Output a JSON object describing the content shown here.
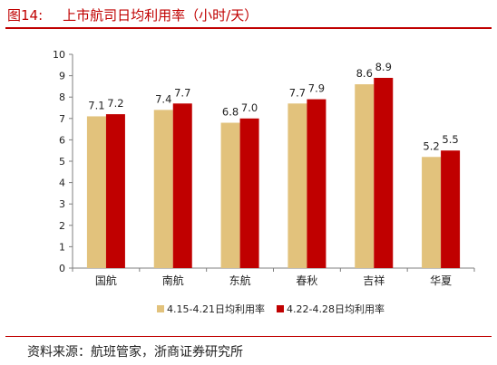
{
  "header": {
    "figure_label": "图14:",
    "title": "上市航司日均利用率（小时/天）"
  },
  "footer": {
    "source": "资料来源：航班管家，浙商证券研究所"
  },
  "colors": {
    "title_red": "#c00000",
    "series_a": "#e2c27c",
    "series_b": "#c00000",
    "axis": "#7f7f7f"
  },
  "chart_data": {
    "type": "bar",
    "title": "",
    "xlabel": "",
    "ylabel": "",
    "ylim": [
      0,
      10
    ],
    "yticks": [
      0,
      1,
      2,
      3,
      4,
      5,
      6,
      7,
      8,
      9,
      10
    ],
    "grid": false,
    "legend_position": "bottom",
    "categories": [
      "国航",
      "南航",
      "东航",
      "春秋",
      "吉祥",
      "华夏"
    ],
    "series": [
      {
        "name": "4.15-4.21日均利用率",
        "values": [
          7.1,
          7.4,
          6.8,
          7.7,
          8.6,
          5.2
        ],
        "labels": [
          "7.1",
          "7.4",
          "6.8",
          "7.7",
          "8.6",
          "5.2"
        ]
      },
      {
        "name": "4.22-4.28日均利用率",
        "values": [
          7.2,
          7.7,
          7.0,
          7.9,
          8.9,
          5.5
        ],
        "labels": [
          "7.2",
          "7.7",
          "7.0",
          "7.9",
          "8.9",
          "5.5"
        ]
      }
    ]
  }
}
